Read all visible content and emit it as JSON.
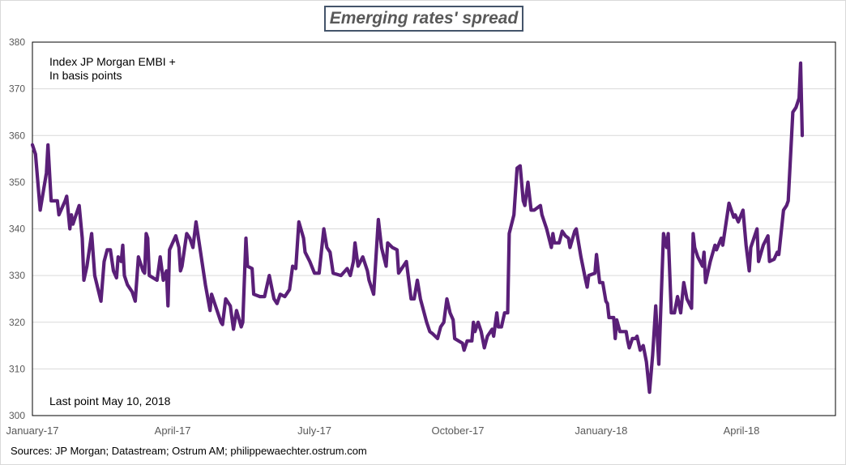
{
  "chart_data": {
    "type": "line",
    "title": "Emerging rates' spread",
    "annotations": [
      "Index JP Morgan EMBI +",
      "In basis points"
    ],
    "last_point_note": "Last point May 10, 2018",
    "source": "Sources: JP Morgan; Datastream; Ostrum AM; philippewaechter.ostrum.com",
    "ylim": [
      300,
      380
    ],
    "y_ticks": [
      300,
      310,
      320,
      330,
      340,
      350,
      360,
      370,
      380
    ],
    "x_ticks": [
      {
        "label": "January-17",
        "date": "2017-01-01"
      },
      {
        "label": "April-17",
        "date": "2017-04-01"
      },
      {
        "label": "July-17",
        "date": "2017-07-01"
      },
      {
        "label": "October-17",
        "date": "2017-10-01"
      },
      {
        "label": "January-18",
        "date": "2018-01-01"
      },
      {
        "label": "April-18",
        "date": "2018-04-01"
      }
    ],
    "grid": "horizontal",
    "colors": {
      "line": "#5a1f78",
      "grid": "#d9d9d9",
      "title_border": "#44546a"
    },
    "series": [
      {
        "points": [
          [
            "2017-01-01",
            358
          ],
          [
            "2017-01-03",
            356
          ],
          [
            "2017-01-06",
            344
          ],
          [
            "2017-01-10",
            352
          ],
          [
            "2017-01-11",
            358
          ],
          [
            "2017-01-13",
            346
          ],
          [
            "2017-01-17",
            346
          ],
          [
            "2017-01-18",
            343
          ],
          [
            "2017-01-22",
            346
          ],
          [
            "2017-01-23",
            347
          ],
          [
            "2017-01-25",
            340
          ],
          [
            "2017-01-26",
            343
          ],
          [
            "2017-01-27",
            341
          ],
          [
            "2017-01-31",
            345
          ],
          [
            "2017-02-02",
            338
          ],
          [
            "2017-02-03",
            329
          ],
          [
            "2017-02-05",
            332
          ],
          [
            "2017-02-08",
            339
          ],
          [
            "2017-02-10",
            330
          ],
          [
            "2017-02-14",
            324.5
          ],
          [
            "2017-02-16",
            333
          ],
          [
            "2017-02-18",
            335.5
          ],
          [
            "2017-02-20",
            335.5
          ],
          [
            "2017-02-22",
            331
          ],
          [
            "2017-02-24",
            329.5
          ],
          [
            "2017-02-25",
            334
          ],
          [
            "2017-02-27",
            333
          ],
          [
            "2017-02-28",
            336.5
          ],
          [
            "2017-03-01",
            330
          ],
          [
            "2017-03-03",
            328
          ],
          [
            "2017-03-06",
            326.5
          ],
          [
            "2017-03-08",
            324.5
          ],
          [
            "2017-03-10",
            334
          ],
          [
            "2017-03-13",
            331
          ],
          [
            "2017-03-14",
            330.5
          ],
          [
            "2017-03-15",
            339
          ],
          [
            "2017-03-16",
            338
          ],
          [
            "2017-03-17",
            330
          ],
          [
            "2017-03-22",
            329
          ],
          [
            "2017-03-24",
            334
          ],
          [
            "2017-03-26",
            329
          ],
          [
            "2017-03-28",
            331
          ],
          [
            "2017-03-29",
            323.5
          ],
          [
            "2017-03-30",
            335.5
          ],
          [
            "2017-04-03",
            338.5
          ],
          [
            "2017-04-05",
            336
          ],
          [
            "2017-04-06",
            331
          ],
          [
            "2017-04-07",
            332
          ],
          [
            "2017-04-10",
            339
          ],
          [
            "2017-04-12",
            338
          ],
          [
            "2017-04-14",
            336
          ],
          [
            "2017-04-16",
            341.5
          ],
          [
            "2017-04-18",
            337
          ],
          [
            "2017-04-22",
            328
          ],
          [
            "2017-04-25",
            322.5
          ],
          [
            "2017-04-26",
            326
          ],
          [
            "2017-04-29",
            323
          ],
          [
            "2017-05-02",
            320
          ],
          [
            "2017-05-03",
            319.5
          ],
          [
            "2017-05-05",
            325
          ],
          [
            "2017-05-08",
            323.5
          ],
          [
            "2017-05-10",
            318.5
          ],
          [
            "2017-05-12",
            322.5
          ],
          [
            "2017-05-15",
            319
          ],
          [
            "2017-05-16",
            320
          ],
          [
            "2017-05-18",
            338
          ],
          [
            "2017-05-19",
            332
          ],
          [
            "2017-05-22",
            331.5
          ],
          [
            "2017-05-23",
            326
          ],
          [
            "2017-05-27",
            325.5
          ],
          [
            "2017-05-30",
            325.5
          ],
          [
            "2017-06-02",
            330
          ],
          [
            "2017-06-05",
            325
          ],
          [
            "2017-06-07",
            324
          ],
          [
            "2017-06-09",
            326
          ],
          [
            "2017-06-12",
            325.5
          ],
          [
            "2017-06-15",
            327
          ],
          [
            "2017-06-17",
            332
          ],
          [
            "2017-06-19",
            331.5
          ],
          [
            "2017-06-21",
            341.5
          ],
          [
            "2017-06-24",
            338
          ],
          [
            "2017-06-25",
            335
          ],
          [
            "2017-06-28",
            333
          ],
          [
            "2017-07-01",
            330.5
          ],
          [
            "2017-07-04",
            330.5
          ],
          [
            "2017-07-07",
            340
          ],
          [
            "2017-07-09",
            336
          ],
          [
            "2017-07-11",
            335
          ],
          [
            "2017-07-13",
            330.5
          ],
          [
            "2017-07-18",
            330
          ],
          [
            "2017-07-22",
            331.5
          ],
          [
            "2017-07-24",
            330
          ],
          [
            "2017-07-26",
            333
          ],
          [
            "2017-07-27",
            337
          ],
          [
            "2017-07-29",
            332
          ],
          [
            "2017-08-01",
            334
          ],
          [
            "2017-08-04",
            331
          ],
          [
            "2017-08-05",
            329
          ],
          [
            "2017-08-07",
            327
          ],
          [
            "2017-08-08",
            326
          ],
          [
            "2017-08-11",
            342
          ],
          [
            "2017-08-13",
            336
          ],
          [
            "2017-08-16",
            332
          ],
          [
            "2017-08-17",
            337
          ],
          [
            "2017-08-20",
            336
          ],
          [
            "2017-08-23",
            335.5
          ],
          [
            "2017-08-24",
            330.5
          ],
          [
            "2017-08-28",
            332.5
          ],
          [
            "2017-08-29",
            333
          ],
          [
            "2017-09-01",
            325
          ],
          [
            "2017-09-03",
            325
          ],
          [
            "2017-09-05",
            329
          ],
          [
            "2017-09-07",
            325
          ],
          [
            "2017-09-11",
            320
          ],
          [
            "2017-09-13",
            318
          ],
          [
            "2017-09-15",
            317.5
          ],
          [
            "2017-09-18",
            316.5
          ],
          [
            "2017-09-20",
            319
          ],
          [
            "2017-09-22",
            320
          ],
          [
            "2017-09-24",
            325
          ],
          [
            "2017-09-26",
            322
          ],
          [
            "2017-09-28",
            320.5
          ],
          [
            "2017-09-29",
            316.5
          ],
          [
            "2017-10-04",
            315.5
          ],
          [
            "2017-10-05",
            314
          ],
          [
            "2017-10-07",
            316
          ],
          [
            "2017-10-10",
            316
          ],
          [
            "2017-10-11",
            320
          ],
          [
            "2017-10-12",
            318
          ],
          [
            "2017-10-14",
            320
          ],
          [
            "2017-10-16",
            318
          ],
          [
            "2017-10-18",
            314.5
          ],
          [
            "2017-10-20",
            317
          ],
          [
            "2017-10-23",
            318.5
          ],
          [
            "2017-10-24",
            317
          ],
          [
            "2017-10-26",
            322
          ],
          [
            "2017-10-27",
            319
          ],
          [
            "2017-10-29",
            319
          ],
          [
            "2017-10-31",
            322
          ],
          [
            "2017-11-02",
            322
          ],
          [
            "2017-11-03",
            339
          ],
          [
            "2017-11-06",
            343
          ],
          [
            "2017-11-08",
            353
          ],
          [
            "2017-11-10",
            353.5
          ],
          [
            "2017-11-12",
            346
          ],
          [
            "2017-11-13",
            345
          ],
          [
            "2017-11-15",
            350
          ],
          [
            "2017-11-17",
            344
          ],
          [
            "2017-11-19",
            344
          ],
          [
            "2017-11-23",
            345
          ],
          [
            "2017-11-24",
            343
          ],
          [
            "2017-11-27",
            340
          ],
          [
            "2017-11-30",
            336
          ],
          [
            "2017-12-01",
            339
          ],
          [
            "2017-12-02",
            337
          ],
          [
            "2017-12-05",
            337
          ],
          [
            "2017-12-07",
            339.5
          ],
          [
            "2017-12-09",
            338.5
          ],
          [
            "2017-12-11",
            338
          ],
          [
            "2017-12-12",
            336
          ],
          [
            "2017-12-15",
            339.5
          ],
          [
            "2017-12-16",
            340
          ],
          [
            "2017-12-19",
            334
          ],
          [
            "2017-12-22",
            329
          ],
          [
            "2017-12-23",
            327.5
          ],
          [
            "2017-12-24",
            330
          ],
          [
            "2017-12-28",
            330.5
          ],
          [
            "2017-12-29",
            334.5
          ],
          [
            "2017-12-31",
            328.5
          ],
          [
            "2018-01-02",
            328.5
          ],
          [
            "2018-01-04",
            324.5
          ],
          [
            "2018-01-05",
            324
          ],
          [
            "2018-01-06",
            321
          ],
          [
            "2018-01-09",
            321
          ],
          [
            "2018-01-10",
            316.5
          ],
          [
            "2018-01-11",
            320.5
          ],
          [
            "2018-01-13",
            318
          ],
          [
            "2018-01-17",
            318
          ],
          [
            "2018-01-18",
            316
          ],
          [
            "2018-01-19",
            314.5
          ],
          [
            "2018-01-21",
            316.5
          ],
          [
            "2018-01-23",
            316.5
          ],
          [
            "2018-01-24",
            317
          ],
          [
            "2018-01-26",
            314
          ],
          [
            "2018-01-28",
            315
          ],
          [
            "2018-01-30",
            311.5
          ],
          [
            "2018-02-01",
            305
          ],
          [
            "2018-02-03",
            313
          ],
          [
            "2018-02-05",
            323.5
          ],
          [
            "2018-02-07",
            311
          ],
          [
            "2018-02-10",
            339
          ],
          [
            "2018-02-12",
            336
          ],
          [
            "2018-02-13",
            339
          ],
          [
            "2018-02-15",
            322
          ],
          [
            "2018-02-17",
            322
          ],
          [
            "2018-02-19",
            325.5
          ],
          [
            "2018-02-21",
            322
          ],
          [
            "2018-02-23",
            328.5
          ],
          [
            "2018-02-25",
            325
          ],
          [
            "2018-02-28",
            323
          ],
          [
            "2018-03-01",
            339
          ],
          [
            "2018-03-02",
            336
          ],
          [
            "2018-03-04",
            334
          ],
          [
            "2018-03-07",
            332
          ],
          [
            "2018-03-08",
            335
          ],
          [
            "2018-03-09",
            328.5
          ],
          [
            "2018-03-12",
            333
          ],
          [
            "2018-03-15",
            336.5
          ],
          [
            "2018-03-16",
            335.5
          ],
          [
            "2018-03-19",
            338
          ],
          [
            "2018-03-20",
            336.5
          ],
          [
            "2018-03-24",
            345.5
          ],
          [
            "2018-03-27",
            342.5
          ],
          [
            "2018-03-28",
            343
          ],
          [
            "2018-03-30",
            341.5
          ],
          [
            "2018-04-02",
            344
          ],
          [
            "2018-04-04",
            336.5
          ],
          [
            "2018-04-06",
            331
          ],
          [
            "2018-04-07",
            336
          ],
          [
            "2018-04-11",
            340
          ],
          [
            "2018-04-12",
            333
          ],
          [
            "2018-04-15",
            336.5
          ],
          [
            "2018-04-18",
            338.5
          ],
          [
            "2018-04-19",
            333
          ],
          [
            "2018-04-22",
            333.5
          ],
          [
            "2018-04-24",
            335
          ],
          [
            "2018-04-25",
            334.5
          ],
          [
            "2018-04-28",
            344
          ],
          [
            "2018-04-30",
            345
          ],
          [
            "2018-05-01",
            346
          ],
          [
            "2018-05-04",
            365
          ],
          [
            "2018-05-06",
            366
          ],
          [
            "2018-05-08",
            368
          ],
          [
            "2018-05-09",
            375.5
          ],
          [
            "2018-05-10",
            360
          ]
        ]
      }
    ]
  }
}
